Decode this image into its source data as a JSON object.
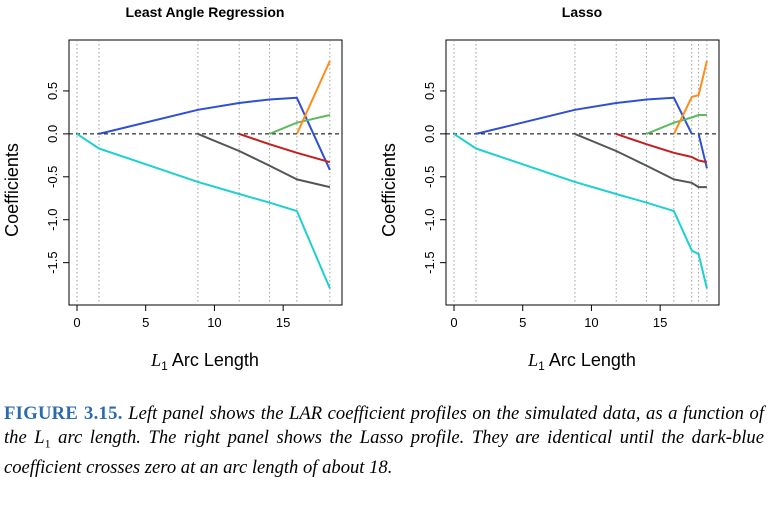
{
  "figure": {
    "panels": [
      {
        "title": "Least Angle Regression",
        "xlabel_main": "L",
        "xlabel_sub": "1",
        "xlabel_rest": " Arc Length",
        "ylabel": "Coefficients"
      },
      {
        "title": "Lasso",
        "xlabel_main": "L",
        "xlabel_sub": "1",
        "xlabel_rest": " Arc Length",
        "ylabel": "Coefficients"
      }
    ]
  },
  "caption": {
    "label": "FIGURE 3.15.",
    "text": "Left panel shows the LAR coefficient profiles on the simulated data, as a function of the L",
    "sub": "1",
    "text_after": " arc length. The right panel shows the Lasso profile. They are identical until the dark-blue coefficient crosses zero at an arc length of about 18."
  },
  "chart_data": [
    {
      "type": "line",
      "title": "Least Angle Regression",
      "xlabel": "L1 Arc Length",
      "ylabel": "Coefficients",
      "xlim": [
        0,
        18.7
      ],
      "ylim": [
        -1.9,
        1.0
      ],
      "x_ticks": [
        "0",
        "5",
        "10",
        "15"
      ],
      "y_ticks": [
        "-1.5",
        "-1.0",
        "-0.5",
        "0.0",
        "0.5"
      ],
      "step_lines_x": [
        0,
        1.6,
        8.8,
        11.8,
        14.0,
        16.0,
        18.4
      ],
      "zero_line": true,
      "series": [
        {
          "color": "#2e4fd6",
          "x": [
            1.6,
            8.8,
            11.8,
            14.0,
            16.0,
            18.4
          ],
          "y": [
            0.0,
            0.28,
            0.36,
            0.4,
            0.42,
            -0.42
          ]
        },
        {
          "color": "#1fd0d0",
          "x": [
            0,
            1.6,
            8.8,
            11.8,
            14.0,
            16.0,
            18.4
          ],
          "y": [
            0.0,
            -0.17,
            -0.56,
            -0.7,
            -0.8,
            -0.9,
            -1.8
          ]
        },
        {
          "color": "#555555",
          "x": [
            8.8,
            11.8,
            14.0,
            16.0,
            18.4
          ],
          "y": [
            0.0,
            -0.2,
            -0.37,
            -0.53,
            -0.62
          ]
        },
        {
          "color": "#c41e1e",
          "x": [
            11.8,
            14.0,
            16.0,
            18.4
          ],
          "y": [
            0.0,
            -0.12,
            -0.22,
            -0.33
          ]
        },
        {
          "color": "#5dbb5d",
          "x": [
            14.0,
            16.0,
            18.4
          ],
          "y": [
            0.0,
            0.13,
            0.22
          ]
        },
        {
          "color": "#ff8c1a",
          "x": [
            16.0,
            18.4
          ],
          "y": [
            0.0,
            0.85
          ]
        }
      ]
    },
    {
      "type": "line",
      "title": "Lasso",
      "xlabel": "L1 Arc Length",
      "ylabel": "Coefficients",
      "xlim": [
        0,
        18.7
      ],
      "ylim": [
        -1.9,
        1.0
      ],
      "x_ticks": [
        "0",
        "5",
        "10",
        "15"
      ],
      "y_ticks": [
        "-1.5",
        "-1.0",
        "-0.5",
        "0.0",
        "0.5"
      ],
      "step_lines_x": [
        0,
        1.6,
        8.8,
        11.8,
        14.0,
        16.0,
        17.3,
        17.8,
        18.4
      ],
      "zero_line": true,
      "series": [
        {
          "color": "#2e4fd6",
          "x": [
            1.6,
            8.8,
            11.8,
            14.0,
            16.0,
            17.3
          ],
          "y": [
            0.0,
            0.28,
            0.36,
            0.4,
            0.42,
            0.0
          ]
        },
        {
          "color": "#2e4fd6",
          "x": [
            17.8,
            18.4
          ],
          "y": [
            0.0,
            -0.4
          ]
        },
        {
          "color": "#1fd0d0",
          "x": [
            0,
            1.6,
            8.8,
            11.8,
            14.0,
            16.0,
            17.3,
            17.8,
            18.4
          ],
          "y": [
            0.0,
            -0.17,
            -0.56,
            -0.7,
            -0.8,
            -0.9,
            -1.36,
            -1.4,
            -1.8
          ]
        },
        {
          "color": "#555555",
          "x": [
            8.8,
            11.8,
            14.0,
            16.0,
            17.3,
            17.8,
            18.4
          ],
          "y": [
            0.0,
            -0.2,
            -0.37,
            -0.53,
            -0.57,
            -0.62,
            -0.62
          ]
        },
        {
          "color": "#c41e1e",
          "x": [
            11.8,
            14.0,
            16.0,
            17.3,
            17.8,
            18.4
          ],
          "y": [
            0.0,
            -0.12,
            -0.22,
            -0.27,
            -0.31,
            -0.33
          ]
        },
        {
          "color": "#5dbb5d",
          "x": [
            14.0,
            16.0,
            17.3,
            17.8,
            18.4
          ],
          "y": [
            0.0,
            0.13,
            0.19,
            0.22,
            0.22
          ]
        },
        {
          "color": "#ff8c1a",
          "x": [
            16.0,
            17.3,
            17.8,
            18.4
          ],
          "y": [
            0.0,
            0.43,
            0.45,
            0.85
          ]
        }
      ]
    }
  ]
}
